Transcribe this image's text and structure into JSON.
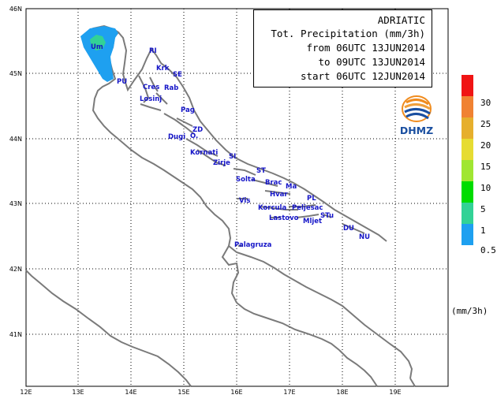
{
  "title_block": {
    "line1": "ADRIATIC",
    "line2": "Tot. Precipitation (mm/3h)",
    "line3": "from 06UTC 13JUN2014",
    "line4": "to 09UTC 13JUN2014",
    "line5": "start 06UTC 12JUN2014"
  },
  "logo": {
    "text": "DHMZ",
    "colors": [
      "#f08c1e",
      "#1a4fa0"
    ]
  },
  "legend": {
    "unit": "(mm/3h)",
    "items": [
      {
        "label": "30",
        "color": "#f01414"
      },
      {
        "label": "25",
        "color": "#f08232"
      },
      {
        "label": "20",
        "color": "#e6af2d"
      },
      {
        "label": "15",
        "color": "#e6dc32"
      },
      {
        "label": "10",
        "color": "#a0e632"
      },
      {
        "label": "5",
        "color": "#00dc00"
      },
      {
        "label": "1",
        "color": "#32d296"
      },
      {
        "label": "0.5",
        "color": "#1ea0f0"
      }
    ]
  },
  "axes": {
    "lon_labels": [
      "12E",
      "13E",
      "14E",
      "15E",
      "16E",
      "17E",
      "18E",
      "19E"
    ],
    "lat_labels": [
      "46N",
      "45N",
      "44N",
      "43N",
      "42N",
      "41N"
    ]
  },
  "places": [
    {
      "name": "RI"
    },
    {
      "name": "Krk"
    },
    {
      "name": "SE"
    },
    {
      "name": "Um"
    },
    {
      "name": "PU"
    },
    {
      "name": "Cres"
    },
    {
      "name": "Rab"
    },
    {
      "name": "Losinj"
    },
    {
      "name": "Pag"
    },
    {
      "name": "ZD"
    },
    {
      "name": "Dugi"
    },
    {
      "name": "O."
    },
    {
      "name": "Kornati"
    },
    {
      "name": "SI"
    },
    {
      "name": "Zirje"
    },
    {
      "name": "ST"
    },
    {
      "name": "Solta"
    },
    {
      "name": "Brac"
    },
    {
      "name": "Ma"
    },
    {
      "name": "Hvar"
    },
    {
      "name": "PL"
    },
    {
      "name": "Vis"
    },
    {
      "name": "Korcula"
    },
    {
      "name": "Peljesac"
    },
    {
      "name": "Lastovo"
    },
    {
      "name": "STu"
    },
    {
      "name": "Mljet"
    },
    {
      "name": "DU"
    },
    {
      "name": "NU"
    },
    {
      "name": "Palagruza"
    }
  ],
  "colors": {
    "coast": "#7a7a7a",
    "grid": "#000000",
    "label": "#1515c8"
  }
}
